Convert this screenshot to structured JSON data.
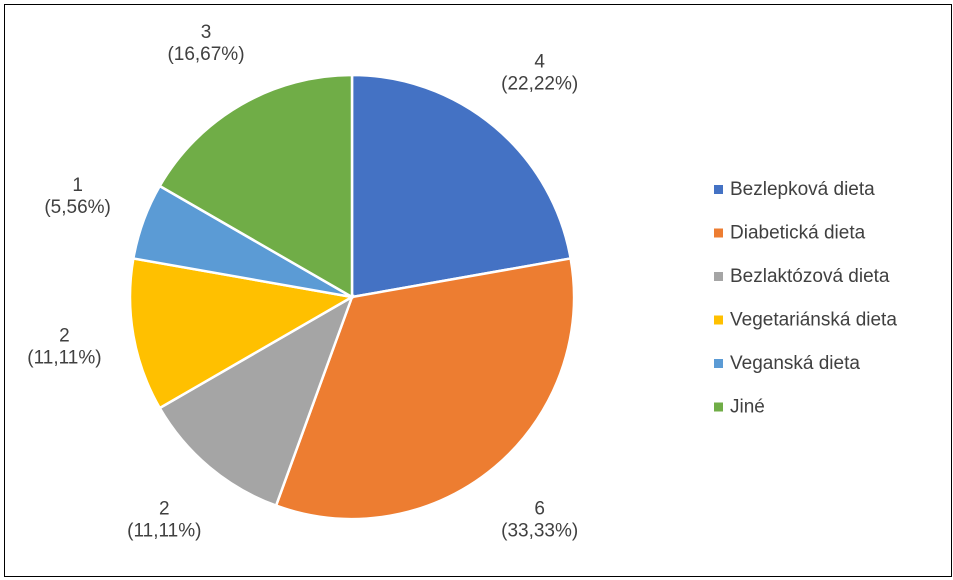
{
  "chart_data": {
    "type": "pie",
    "categories": [
      "Bezlepková dieta",
      "Diabetická dieta",
      "Bezlaktózová dieta",
      "Vegetariánská dieta",
      "Veganská dieta",
      "Jiné"
    ],
    "values": [
      4,
      6,
      2,
      2,
      1,
      3
    ],
    "percentages": [
      22.22,
      33.33,
      11.11,
      11.11,
      5.56,
      16.67
    ],
    "percent_labels": [
      "(22,22%)",
      "(33,33%)",
      "(11,11%)",
      "(11,11%)",
      "(5,56%)",
      "(16,67%)"
    ],
    "colors": [
      "#4472c4",
      "#ed7d31",
      "#a5a5a5",
      "#ffc000",
      "#5b9bd5",
      "#70ad47"
    ],
    "legend": "right"
  }
}
